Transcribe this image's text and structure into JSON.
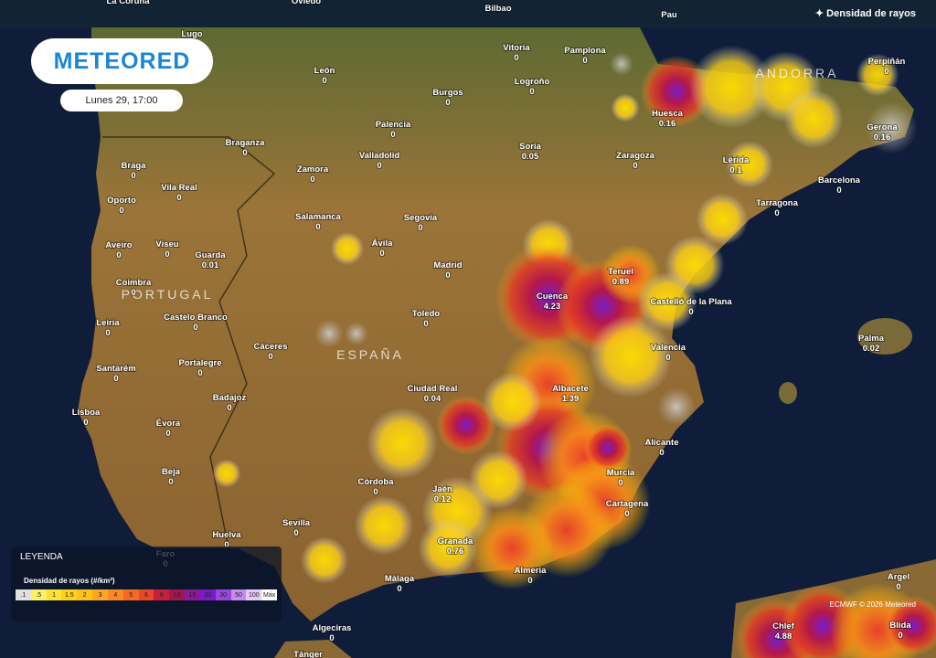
{
  "header": {
    "logo": "METEORED",
    "time": "Lunes 29, 17:00",
    "layer": "Densidad de rayos"
  },
  "regions": [
    "PORTUGAL",
    "ESPAÑA",
    "ANDORRA"
  ],
  "credit": "ECMWF © 2026 Meteored",
  "legend": {
    "title": "LEYENDA",
    "scale_title": "Densidad de rayos (#/km²)",
    "labels": [
      ".1",
      ".5",
      "1",
      "1.5",
      "2",
      "3",
      "4",
      "5",
      "6",
      "8",
      "10",
      "15",
      "20",
      "30",
      "50",
      "100",
      "Máx"
    ]
  },
  "cities": [
    {
      "name": "La Coruña"
    },
    {
      "name": "Oviedo"
    },
    {
      "name": "Bilbao"
    },
    {
      "name": "Pau"
    },
    {
      "name": "Lugo"
    },
    {
      "name": "León",
      "value": 0
    },
    {
      "name": "Burgos",
      "value": 0
    },
    {
      "name": "Logroño",
      "value": 0
    },
    {
      "name": "Vitoria",
      "value": 0
    },
    {
      "name": "Pamplona",
      "value": 0
    },
    {
      "name": "Huesca",
      "value": 0.16
    },
    {
      "name": "Perpiñán",
      "value": 0
    },
    {
      "name": "Gerona",
      "value": 0.16
    },
    {
      "name": "Lérida",
      "value": 0.1
    },
    {
      "name": "Barcelona",
      "value": 0
    },
    {
      "name": "Tarragona",
      "value": 0
    },
    {
      "name": "Zaragoza",
      "value": 0
    },
    {
      "name": "Soria",
      "value": 0.05
    },
    {
      "name": "Palencia",
      "value": 0
    },
    {
      "name": "Valladolid",
      "value": 0
    },
    {
      "name": "Zamora",
      "value": 0
    },
    {
      "name": "Braganza",
      "value": 0
    },
    {
      "name": "Braga",
      "value": 0
    },
    {
      "name": "Vila Real",
      "value": 0
    },
    {
      "name": "Oporto",
      "value": 0
    },
    {
      "name": "Salamanca",
      "value": 0
    },
    {
      "name": "Segovia",
      "value": 0
    },
    {
      "name": "Ávila",
      "value": 0
    },
    {
      "name": "Madrid",
      "value": 0
    },
    {
      "name": "Guarda",
      "value": 0.01
    },
    {
      "name": "Viseu",
      "value": 0
    },
    {
      "name": "Aveiro",
      "value": 0
    },
    {
      "name": "Coimbra",
      "value": 0
    },
    {
      "name": "Teruel",
      "value": 0.89
    },
    {
      "name": "Cuenca",
      "value": 4.23
    },
    {
      "name": "Castelló de la Plana",
      "value": 0
    },
    {
      "name": "Leiria",
      "value": 0
    },
    {
      "name": "Castelo Branco",
      "value": 0
    },
    {
      "name": "Toledo",
      "value": 0
    },
    {
      "name": "Valencia",
      "value": 0
    },
    {
      "name": "Cáceres",
      "value": 0
    },
    {
      "name": "Portalegre",
      "value": 0
    },
    {
      "name": "Santarém",
      "value": 0
    },
    {
      "name": "Palma",
      "value": 0.02
    },
    {
      "name": "Ciudad Real",
      "value": 0.04
    },
    {
      "name": "Albacete",
      "value": 1.39
    },
    {
      "name": "Lisboa",
      "value": 0
    },
    {
      "name": "Badajoz",
      "value": 0
    },
    {
      "name": "Évora",
      "value": 0
    },
    {
      "name": "Alicante",
      "value": 0
    },
    {
      "name": "Beja",
      "value": 0
    },
    {
      "name": "Murcia",
      "value": 0
    },
    {
      "name": "Córdoba",
      "value": 0
    },
    {
      "name": "Jaén",
      "value": 0.12
    },
    {
      "name": "Cartagena",
      "value": 0
    },
    {
      "name": "Huelva",
      "value": 0
    },
    {
      "name": "Sevilla",
      "value": 0
    },
    {
      "name": "Granada",
      "value": 0.76
    },
    {
      "name": "Faro",
      "value": 0
    },
    {
      "name": "Almería",
      "value": 0
    },
    {
      "name": "Málaga",
      "value": 0
    },
    {
      "name": "Argel",
      "value": 0
    },
    {
      "name": "Chlef",
      "value": 4.88
    },
    {
      "name": "Blida",
      "value": 0
    },
    {
      "name": "Algeciras",
      "value": 0
    },
    {
      "name": "Tánger"
    }
  ]
}
